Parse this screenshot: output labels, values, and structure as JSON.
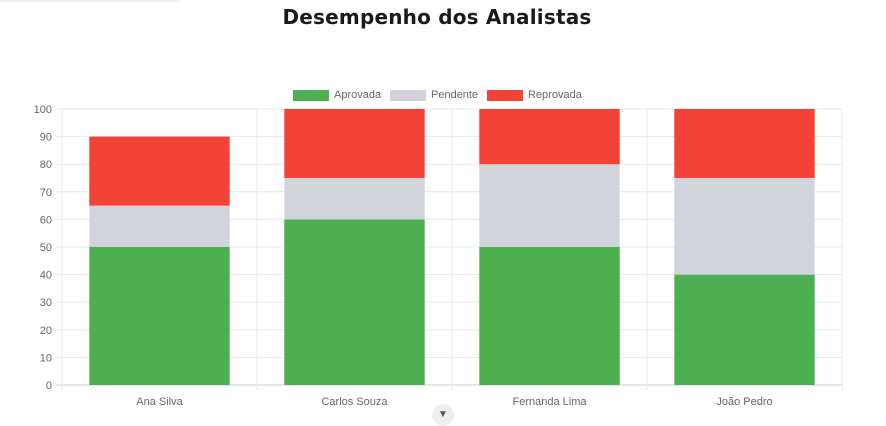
{
  "title": "Desempenho dos Analistas",
  "chart_data": {
    "type": "bar",
    "stacked": true,
    "categories": [
      "Ana Silva",
      "Carlos Souza",
      "Fernanda Lima",
      "João Pedro"
    ],
    "series": [
      {
        "name": "Aprovada",
        "color": "#4caf50",
        "values": [
          50,
          60,
          50,
          40
        ]
      },
      {
        "name": "Pendente",
        "color": "#d1d5db",
        "values": [
          15,
          15,
          30,
          35
        ]
      },
      {
        "name": "Reprovada",
        "color": "#f44336",
        "values": [
          25,
          25,
          20,
          25
        ]
      }
    ],
    "ylim": [
      0,
      100
    ],
    "yticks": [
      0,
      10,
      20,
      30,
      40,
      50,
      60,
      70,
      80,
      90,
      100
    ],
    "grid": true,
    "legend_position": "top"
  },
  "icons": {
    "scroll_hint": "chevron-down-icon"
  }
}
